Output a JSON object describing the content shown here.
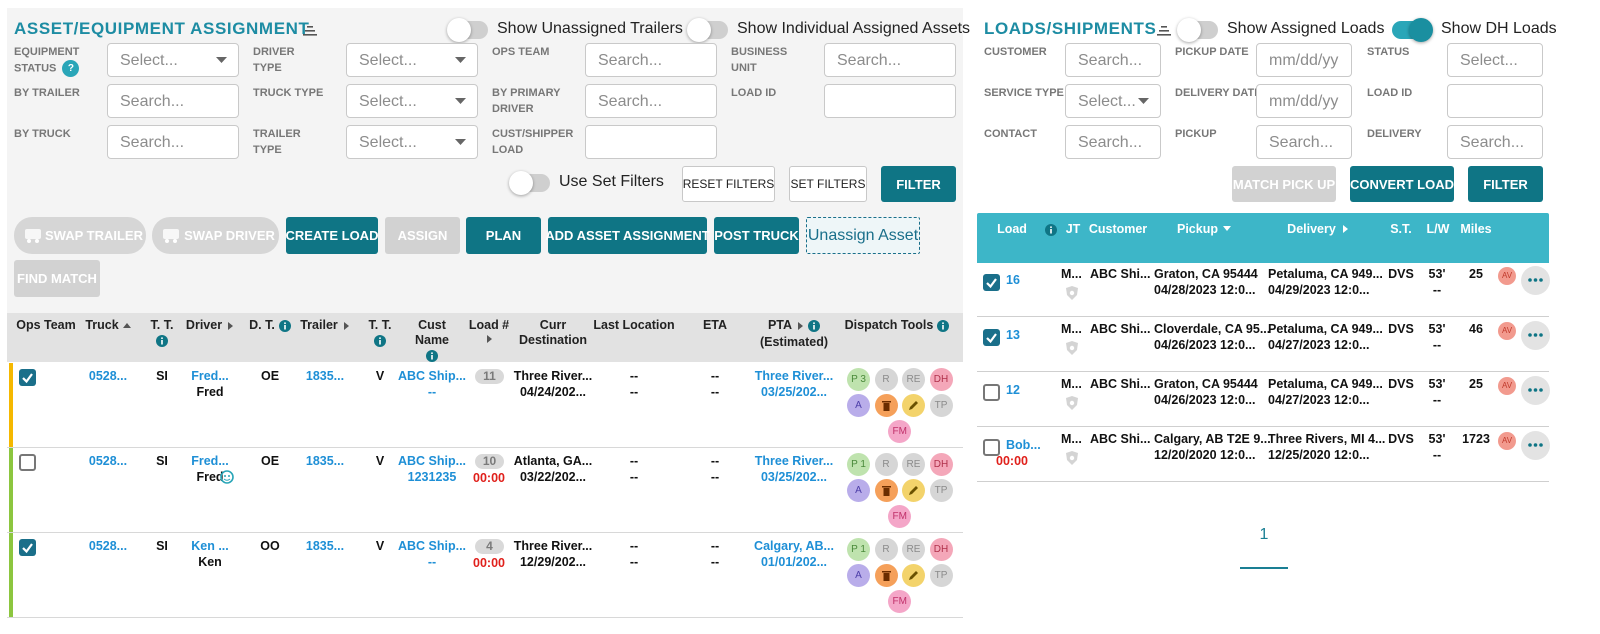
{
  "assets": {
    "title": "ASSET/EQUIPMENT ASSIGNMENT",
    "toggles": [
      {
        "label": "Show Unassigned Trailers",
        "on": false
      },
      {
        "label": "Show Individual Assigned Assets",
        "on": false
      }
    ],
    "filters": [
      {
        "label": "EQUIPMENT STATUS",
        "kind": "select",
        "placeholder": "Select...",
        "help": "?"
      },
      {
        "label": "BY TRAILER",
        "kind": "input",
        "placeholder": "Search..."
      },
      {
        "label": "BY TRUCK",
        "kind": "input",
        "placeholder": "Search..."
      },
      {
        "label": "DRIVER TYPE",
        "kind": "select",
        "placeholder": "Select..."
      },
      {
        "label": "TRUCK TYPE",
        "kind": "select",
        "placeholder": "Select..."
      },
      {
        "label": "TRAILER TYPE",
        "kind": "select",
        "placeholder": "Select..."
      },
      {
        "label": "OPS TEAM",
        "kind": "input",
        "placeholder": "Search..."
      },
      {
        "label": "BY PRIMARY DRIVER",
        "kind": "input",
        "placeholder": "Search..."
      },
      {
        "label": "CUST/SHIPPER LOAD",
        "kind": "input"
      },
      {
        "label": "BUSINESS UNIT",
        "kind": "input",
        "placeholder": "Search..."
      },
      {
        "label": "LOAD ID",
        "kind": "input"
      }
    ],
    "set_filters_toggle": {
      "label": "Use Set Filters",
      "on": false
    },
    "filter_buttons": [
      {
        "label": "RESET FILTERS",
        "style": "outline"
      },
      {
        "label": "SET FILTERS",
        "style": "outline"
      },
      {
        "label": "FILTER",
        "style": "primary"
      }
    ],
    "actions": [
      {
        "label": "SWAP TRAILER",
        "style": "pill"
      },
      {
        "label": "SWAP DRIVER",
        "style": "pill"
      },
      {
        "label": "CREATE LOAD",
        "style": "primary"
      },
      {
        "label": "ASSIGN",
        "style": "disabled"
      },
      {
        "label": "PLAN",
        "style": "primary"
      },
      {
        "label": "ADD ASSET ASSIGNMENT",
        "style": "primary"
      },
      {
        "label": "POST TRUCK",
        "style": "primary"
      },
      {
        "label": "Unassign Asset",
        "style": "dashed"
      },
      {
        "label": "FIND MATCH",
        "style": "disabled"
      }
    ],
    "columns": [
      {
        "label": "Ops Team"
      },
      {
        "label": "Truck",
        "sort": "asc"
      },
      {
        "label": "T. T.",
        "info": true
      },
      {
        "label": "Driver",
        "sort": "none"
      },
      {
        "label": "D. T.",
        "info": true
      },
      {
        "label": "Trailer",
        "sort": "none"
      },
      {
        "label": "T. T.",
        "info": true
      },
      {
        "label": "Cust Name",
        "info": true
      },
      {
        "label": "Load #",
        "sort": "none"
      },
      {
        "label": "Curr Destination"
      },
      {
        "label": "Last Location"
      },
      {
        "label": "ETA"
      },
      {
        "label": "PTA",
        "sort": "none",
        "info": true,
        "sub": "(Estimated)"
      },
      {
        "label": "Dispatch Tools",
        "info": true
      }
    ],
    "rows": [
      {
        "selected": true,
        "status_color": "#f5b800",
        "truck": "0528...",
        "truck_type": "SI",
        "driver": "Fred...",
        "driver_name": "Fred",
        "driver_type": "OE",
        "trailer": "1835...",
        "trailer_type": "V",
        "cust_name": "ABC Ship...",
        "cust_sub": "--",
        "load_no": "11",
        "curr_dest": "Three River...",
        "curr_date": "04/24/202...",
        "last_location": [
          "--",
          "--"
        ],
        "eta": [
          "--",
          "--"
        ],
        "pta_place": "Three River...",
        "pta_date": "03/25/202...",
        "tools": [
          "P 3",
          "R",
          "RE",
          "DH",
          "A",
          "TP",
          "FM"
        ]
      },
      {
        "selected": false,
        "status_color": "#8cc63f",
        "truck": "0528...",
        "truck_type": "SI",
        "driver": "Fred...",
        "driver_name": "Fred",
        "driver_badge": true,
        "driver_type": "OE",
        "trailer": "1835...",
        "trailer_type": "V",
        "cust_name": "ABC Ship...",
        "cust_sub": "1231235",
        "load_no": "10",
        "load_time": "00:00",
        "curr_dest": "Atlanta, GA...",
        "curr_date": "03/22/202...",
        "last_location": [
          "--",
          "--"
        ],
        "eta": [
          "--",
          "--"
        ],
        "pta_place": "Three River...",
        "pta_date": "03/25/202...",
        "tools": [
          "P 1",
          "R",
          "RE",
          "DH",
          "A",
          "TP",
          "FM"
        ]
      },
      {
        "selected": true,
        "status_color": "#8cc63f",
        "truck": "0528...",
        "truck_type": "SI",
        "driver": "Ken ...",
        "driver_name": "Ken",
        "driver_type": "OO",
        "trailer": "1835...",
        "trailer_type": "V",
        "cust_name": "ABC Ship...",
        "cust_sub": "--",
        "load_no": "4",
        "load_time": "00:00",
        "curr_dest": "Three River...",
        "curr_date": "12/29/202...",
        "last_location": [
          "--",
          "--"
        ],
        "eta": [
          "--",
          "--"
        ],
        "pta_place": "Calgary, AB...",
        "pta_date": "01/01/202...",
        "tools": [
          "P 1",
          "R",
          "RE",
          "DH",
          "A",
          "TP",
          "FM"
        ]
      }
    ]
  },
  "loads": {
    "title": "LOADS/SHIPMENTS",
    "toggles": [
      {
        "label": "Show Assigned Loads",
        "on": false
      },
      {
        "label": "Show DH Loads",
        "on": true
      }
    ],
    "filters": [
      {
        "label": "CUSTOMER",
        "kind": "input",
        "placeholder": "Search..."
      },
      {
        "label": "SERVICE TYPE",
        "kind": "select",
        "placeholder": "Select..."
      },
      {
        "label": "CONTACT",
        "kind": "input",
        "placeholder": "Search..."
      },
      {
        "label": "PICKUP DATE",
        "kind": "input",
        "placeholder": "mm/dd/yy"
      },
      {
        "label": "DELIVERY DATE",
        "kind": "input",
        "placeholder": "mm/dd/yy"
      },
      {
        "label": "PICKUP",
        "kind": "input",
        "placeholder": "Search..."
      },
      {
        "label": "STATUS",
        "kind": "input",
        "placeholder": "Select..."
      },
      {
        "label": "LOAD ID",
        "kind": "input"
      },
      {
        "label": "DELIVERY",
        "kind": "input",
        "placeholder": "Search..."
      }
    ],
    "buttons": [
      {
        "label": "MATCH PICK UP",
        "style": "disabled"
      },
      {
        "label": "CONVERT LOAD",
        "style": "primary"
      },
      {
        "label": "FILTER",
        "style": "primary"
      }
    ],
    "columns": [
      {
        "label": "Load",
        "info": true
      },
      {
        "label": "JT"
      },
      {
        "label": "Customer"
      },
      {
        "label": "Pickup",
        "sort": "desc"
      },
      {
        "label": "Delivery",
        "sort": "none"
      },
      {
        "label": "S.T."
      },
      {
        "label": "L/W"
      },
      {
        "label": "Miles"
      }
    ],
    "rows": [
      {
        "selected": true,
        "load": "16",
        "jt": "M...",
        "customer": "ABC Shi...",
        "pickup_place": "Graton, CA 95444",
        "pickup_date": "04/28/2023 12:0...",
        "delivery_place": "Petaluma, CA 949...",
        "delivery_date": "04/29/2023 12:0...",
        "st": "DVS",
        "lw": "53'",
        "lw_sub": "--",
        "miles": "25",
        "badge": "AV"
      },
      {
        "selected": true,
        "load": "13",
        "jt": "M...",
        "customer": "ABC Shi...",
        "pickup_place": "Cloverdale, CA 95...",
        "pickup_date": "04/26/2023 12:0...",
        "delivery_place": "Petaluma, CA 949...",
        "delivery_date": "04/27/2023 12:0...",
        "st": "DVS",
        "lw": "53'",
        "lw_sub": "--",
        "miles": "46",
        "badge": "AV"
      },
      {
        "selected": false,
        "load": "12",
        "jt": "M...",
        "customer": "ABC Shi...",
        "pickup_place": "Graton, CA 95444",
        "pickup_date": "04/26/2023 12:0...",
        "delivery_place": "Petaluma, CA 949...",
        "delivery_date": "04/27/2023 12:0...",
        "st": "DVS",
        "lw": "53'",
        "lw_sub": "--",
        "miles": "25",
        "badge": "AV"
      },
      {
        "selected": false,
        "load": "Bob...",
        "load_time": "00:00",
        "jt": "M...",
        "customer": "ABC Shi...",
        "pickup_place": "Calgary, AB T2E 9...",
        "pickup_date": "12/20/2020 12:0...",
        "delivery_place": "Three Rivers, MI 4...",
        "delivery_date": "12/25/2020 12:0...",
        "st": "DVS",
        "lw": "53'",
        "lw_sub": "--",
        "miles": "1723",
        "badge": "AV"
      }
    ],
    "page": "1"
  }
}
